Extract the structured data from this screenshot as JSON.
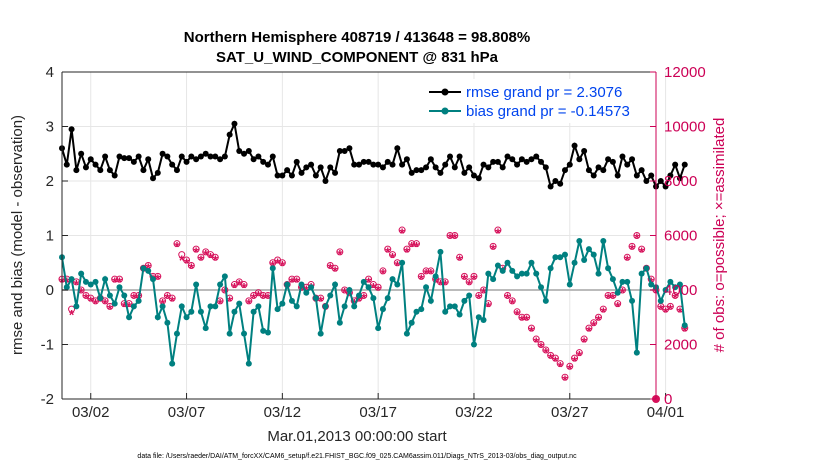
{
  "chart_data": {
    "type": "line",
    "title": "Northern Hemisphere 408719 / 413648 = 98.808%",
    "subtitle": "SAT_U_WIND_COMPONENT @ 831 hPa",
    "xlabel": "Mar.01,2013 00:00:00 start",
    "ylabel": "rmse and bias (model - observation)",
    "ylabel_right": "# of obs: o=possible; ×=assimilated",
    "footer": "data file: /Users/raeder/DAI/ATM_forcXX/CAM6_setup/f.e21.FHIST_BGC.f09_025.CAM6assim.011/Diags_NTrS_2013-03/obs_diag_output.nc",
    "xlim": [
      0.5,
      31.5
    ],
    "ylim": [
      -2,
      4
    ],
    "ylim_right": [
      0,
      12000
    ],
    "x_ticks": [
      {
        "x": 2,
        "label": "03/02"
      },
      {
        "x": 7,
        "label": "03/07"
      },
      {
        "x": 12,
        "label": "03/12"
      },
      {
        "x": 17,
        "label": "03/17"
      },
      {
        "x": 22,
        "label": "03/22"
      },
      {
        "x": 27,
        "label": "03/27"
      },
      {
        "x": 32,
        "label": "04/01"
      }
    ],
    "y_ticks": [
      "-2",
      "-1",
      "0",
      "1",
      "2",
      "3",
      "4"
    ],
    "y_ticks_right": [
      "0",
      "2000",
      "4000",
      "6000",
      "8000",
      "10000",
      "12000"
    ],
    "legend": [
      {
        "label": "rmse grand pr = 2.3076",
        "color": "#000000"
      },
      {
        "label": "bias grand pr = -0.14573",
        "color": "#008080"
      }
    ],
    "x_start": 0.5,
    "x_step": 0.25,
    "rmse": [
      2.6,
      2.3,
      2.95,
      2.2,
      2.5,
      2.25,
      2.4,
      2.3,
      2.2,
      2.45,
      2.2,
      2.1,
      2.45,
      2.42,
      2.42,
      2.35,
      2.45,
      2.2,
      2.4,
      2.05,
      2.15,
      2.5,
      2.45,
      2.3,
      2.2,
      2.45,
      2.35,
      2.45,
      2.4,
      2.45,
      2.5,
      2.45,
      2.45,
      2.4,
      2.45,
      2.85,
      3.05,
      2.55,
      2.5,
      2.55,
      2.4,
      2.45,
      2.35,
      2.3,
      2.45,
      2.1,
      2.1,
      2.2,
      2.1,
      2.35,
      2.15,
      2.25,
      2.3,
      2.1,
      2.25,
      2.0,
      2.25,
      2.15,
      2.55,
      2.55,
      2.6,
      2.3,
      2.3,
      2.35,
      2.35,
      2.3,
      2.3,
      2.25,
      2.35,
      2.3,
      2.6,
      2.3,
      2.4,
      2.15,
      2.2,
      2.2,
      2.25,
      2.4,
      2.25,
      2.15,
      2.3,
      2.45,
      2.25,
      2.45,
      2.15,
      2.25,
      2.1,
      2.05,
      2.3,
      2.25,
      2.35,
      2.35,
      2.25,
      2.45,
      2.4,
      2.3,
      2.4,
      2.35,
      2.4,
      2.45,
      2.35,
      2.25,
      1.9,
      2.0,
      1.95,
      2.2,
      2.3,
      2.65,
      2.4,
      2.55,
      2.2,
      2.1,
      2.25,
      2.2,
      2.4,
      2.35,
      2.1,
      2.45,
      2.3,
      2.4,
      2.1,
      2.2,
      2.0,
      2.1,
      1.9,
      2.0,
      1.9,
      2.1,
      2.3,
      2.05,
      2.3
    ],
    "bias": [
      0.6,
      0.05,
      0.2,
      -0.3,
      0.3,
      0.15,
      0.1,
      0.15,
      -0.15,
      0.2,
      -0.1,
      -0.25,
      0.05,
      -0.1,
      -0.5,
      -0.3,
      -0.2,
      0.4,
      0.35,
      0.2,
      -0.5,
      -0.3,
      -0.6,
      -1.35,
      -0.8,
      -0.3,
      -0.5,
      -0.4,
      0.1,
      -0.4,
      -0.7,
      -0.3,
      -0.3,
      0.1,
      0.25,
      -0.8,
      -0.4,
      -0.25,
      -0.8,
      -1.35,
      -0.4,
      -0.3,
      -0.75,
      -0.78,
      0.4,
      -0.35,
      -0.25,
      0.1,
      -0.2,
      -0.3,
      0.1,
      -0.05,
      0.05,
      -0.15,
      -0.8,
      -0.3,
      -0.1,
      0.1,
      -0.6,
      -0.3,
      0.0,
      -0.3,
      -0.1,
      0.15,
      0.05,
      -0.15,
      -0.7,
      -0.35,
      -0.15,
      0.2,
      0.1,
      0.5,
      -0.8,
      -0.6,
      -0.4,
      -0.35,
      0.05,
      -0.2,
      0.25,
      0.7,
      -0.4,
      -0.3,
      -0.3,
      -0.45,
      -0.2,
      -0.1,
      -1.0,
      -0.5,
      -0.55,
      0.3,
      0.2,
      0.45,
      0.35,
      0.5,
      0.35,
      0.25,
      0.3,
      0.3,
      0.5,
      0.3,
      0.05,
      -0.2,
      0.4,
      0.6,
      0.6,
      0.65,
      0.1,
      0.5,
      0.9,
      0.55,
      0.75,
      0.65,
      0.3,
      0.9,
      0.4,
      0.2,
      -0.05,
      0.15,
      0.15,
      -0.2,
      -1.15,
      0.3,
      0.4,
      0.1,
      0.05,
      -0.2,
      0.0,
      0.15,
      0.05,
      0.1,
      -0.65
    ],
    "obs_possible": [
      4400,
      4400,
      3300,
      4300,
      4000,
      3800,
      3700,
      3600,
      3700,
      3600,
      3400,
      4400,
      4400,
      3500,
      3500,
      3800,
      3800,
      4800,
      4900,
      4500,
      4500,
      3600,
      3800,
      3700,
      5700,
      5300,
      5100,
      4900,
      5500,
      5200,
      5400,
      5300,
      5200,
      3600,
      4000,
      3700,
      4200,
      4300,
      4200,
      3600,
      3800,
      3900,
      3800,
      3800,
      5000,
      5100,
      5000,
      4200,
      4400,
      4400,
      4100,
      4100,
      4200,
      3700,
      3700,
      3400,
      4900,
      4800,
      5400,
      4000,
      3900,
      3600,
      3700,
      3800,
      4400,
      4200,
      4100,
      4700,
      5500,
      5300,
      5000,
      6200,
      5500,
      5700,
      5700,
      4500,
      4700,
      4700,
      4400,
      4300,
      4300,
      6000,
      6000,
      5200,
      4500,
      4300,
      4500,
      3800,
      4000,
      3500,
      5600,
      6200,
      4800,
      3800,
      3600,
      3200,
      3000,
      3000,
      2600,
      2200,
      2000,
      1800,
      1600,
      1500,
      1300,
      800,
      1200,
      1500,
      1700,
      2200,
      2600,
      2800,
      3000,
      3300,
      3800,
      3800,
      3500,
      4000,
      5200,
      5600,
      6000,
      5500,
      4800,
      4400,
      4000,
      3400,
      3300,
      3400,
      3800,
      3300,
      2600
    ],
    "obs_assimilated": [
      4300,
      4300,
      3100,
      4200,
      3900,
      3700,
      3600,
      3500,
      3600,
      3500,
      3300,
      4300,
      4300,
      3400,
      3400,
      3700,
      3700,
      4700,
      4800,
      4400,
      4400,
      3500,
      3700,
      3600,
      5600,
      5100,
      5000,
      4800,
      5400,
      5100,
      5300,
      5200,
      5100,
      3500,
      3900,
      3600,
      4100,
      4200,
      4100,
      3500,
      3700,
      3800,
      3700,
      3700,
      4900,
      5000,
      4900,
      4100,
      4300,
      4300,
      4000,
      4000,
      4100,
      3600,
      3600,
      3300,
      4800,
      4700,
      5300,
      3900,
      3800,
      3500,
      3600,
      3700,
      4300,
      4100,
      4000,
      4600,
      5400,
      5200,
      4900,
      6100,
      5400,
      5600,
      5600,
      4400,
      4600,
      4600,
      4300,
      4200,
      4200,
      5900,
      5900,
      5100,
      4400,
      4200,
      4400,
      3700,
      3900,
      3400,
      5500,
      6100,
      4700,
      3700,
      3500,
      3100,
      2900,
      2900,
      2500,
      2100,
      1900,
      1700,
      1500,
      1400,
      1200,
      700,
      1100,
      1400,
      1600,
      2100,
      2500,
      2700,
      2900,
      3200,
      3700,
      3700,
      3400,
      3900,
      5100,
      5500,
      5900,
      5400,
      4700,
      4300,
      3900,
      3300,
      3200,
      3300,
      3700,
      3200,
      2500
    ]
  }
}
